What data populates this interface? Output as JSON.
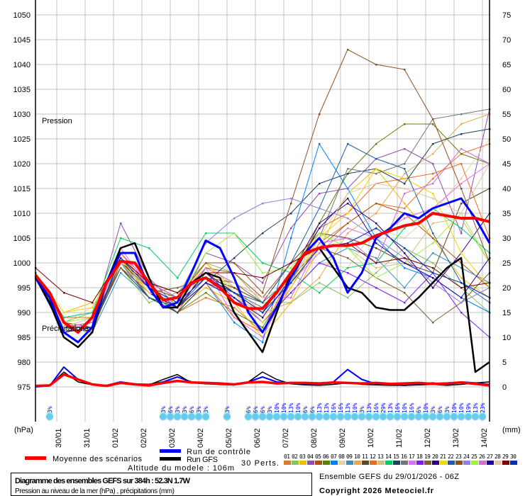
{
  "chart_data": {
    "type": "line",
    "title": "Diagramme des ensembles GEFS sur 384h : 52.3N 1.7W",
    "subtitle": "Pression au niveau de la mer (hPa) , précipitations (mm)",
    "run_info": "Ensemble GEFS du 29/01/2026 - 06Z",
    "copyright": "Copyright 2026 Meteociel.fr",
    "altitude": "Altitude du modele : 106m",
    "ylabel_left": "(hPa)",
    "ylabel_right": "(mm)",
    "label_pression": "Pression",
    "label_precip": "Précipitations",
    "ylim_left": [
      975,
      1050
    ],
    "ylim_right": [
      0,
      75
    ],
    "xlim_hours": [
      0,
      384
    ],
    "grid": true,
    "left_ticks": [
      "1050",
      "1045",
      "1040",
      "1035",
      "1030",
      "1025",
      "1020",
      "1015",
      "1010",
      "1005",
      "1000",
      "995",
      "990",
      "985",
      "980",
      "975"
    ],
    "right_ticks": [
      "75",
      "70",
      "65",
      "60",
      "55",
      "50",
      "45",
      "40",
      "35",
      "30",
      "25",
      "20",
      "15",
      "10",
      "5",
      "0"
    ],
    "date_ticks": [
      "30/01",
      "31/01",
      "01/02",
      "02/02",
      "03/02",
      "04/02",
      "05/02",
      "06/02",
      "07/02",
      "08/02",
      "09/02",
      "10/02",
      "11/02",
      "12/02",
      "13/02",
      "14/02"
    ],
    "legend": {
      "mean": "Moyenne des scénarios",
      "control": "Run de contrôle",
      "gfs": "Run GFS",
      "perts": "30 Perts."
    },
    "colors": {
      "mean": "#ff0000",
      "control": "#0000ff",
      "gfs": "#000000",
      "precip_prob": "#0000ff",
      "bubble": "#66ccee",
      "grid": "#c0c0c0"
    },
    "main_step_hours": 12,
    "mean_pressure": [
      997.5,
      994,
      988,
      986,
      989,
      996,
      1000.3,
      1000,
      996,
      992.5,
      993,
      996,
      997,
      995,
      992,
      990.8,
      990.8,
      994,
      998,
      1002,
      1003,
      1003.5,
      1003.5,
      1004,
      1005.5,
      1006.5,
      1007.5,
      1008,
      1010,
      1009.5,
      1009,
      1009,
      1008.3
    ],
    "control_pressure": [
      997,
      993,
      986,
      984,
      987,
      996,
      1002,
      1002,
      995,
      991,
      992,
      998,
      1004.5,
      1003,
      997,
      990,
      986,
      991,
      997,
      1002,
      1005,
      1001,
      994,
      998,
      1005,
      1007,
      1010,
      1009,
      1011,
      1012,
      1013,
      1009,
      1004
    ],
    "gfs_pressure": [
      997,
      992,
      985,
      983,
      986,
      996,
      1003,
      1004,
      997,
      991,
      991,
      996,
      998,
      997,
      990,
      986,
      982,
      990,
      998,
      1002,
      1003,
      999,
      995,
      994,
      991,
      990.5,
      990.5,
      993,
      996,
      999,
      1001,
      978,
      980
    ],
    "mean_precip": [
      0.2,
      0.3,
      2.5,
      1.5,
      0.5,
      0.2,
      0.8,
      0.5,
      0.3,
      0.8,
      1.2,
      0.9,
      0.8,
      0.7,
      0.5,
      0.9,
      1,
      0.7,
      0.8,
      0.8,
      0.7,
      0.9,
      0.8,
      0.7,
      0.8,
      0.6,
      0.7,
      0.8,
      0.6,
      0.7,
      0.9,
      0.6,
      0.3
    ],
    "control_precip": [
      0,
      0.2,
      4,
      1.5,
      0.5,
      0.3,
      1,
      0.6,
      0.5,
      1,
      2,
      1,
      0.8,
      0.5,
      0.4,
      1,
      2,
      1,
      0.8,
      0.5,
      0.5,
      1,
      3.5,
      1.5,
      0.6,
      0.5,
      0.3,
      0.5,
      0.8,
      0.4,
      1,
      0.8,
      0.5
    ],
    "gfs_precip": [
      0,
      0.3,
      3,
      1,
      0.4,
      0.2,
      0.8,
      0.5,
      0.4,
      1.5,
      2.5,
      0.8,
      0.6,
      0.5,
      0.4,
      1,
      3,
      1.5,
      0.6,
      0.4,
      0.3,
      0.5,
      0.8,
      0.5,
      0.4,
      0.3,
      0.3,
      0.4,
      0.5,
      0.3,
      0.5,
      0.8,
      1
    ],
    "member_step_hours": 24,
    "members": [
      {
        "name": "01",
        "color": "#e07830",
        "values": [
          997,
          987,
          987,
          1000,
          993,
          990,
          993,
          991,
          986,
          995,
          1004,
          1008,
          1012,
          1011,
          1017,
          1022,
          1024
        ]
      },
      {
        "name": "02",
        "color": "#8cc060",
        "values": [
          997,
          988,
          990,
          999,
          992,
          994,
          1000,
          998,
          992,
          992,
          996,
          993,
          998,
          1003,
          1000,
          995,
          990
        ]
      },
      {
        "name": "03",
        "color": "#f0c000",
        "values": [
          998,
          990,
          992,
          1001,
          994,
          991,
          995,
          992,
          985,
          992,
          1003,
          1014,
          1019,
          1012,
          1005,
          997,
          993
        ]
      },
      {
        "name": "04",
        "color": "#9050b0",
        "values": [
          997,
          987,
          988,
          1008,
          997,
          991,
          1002,
          1000,
          996,
          1007,
          1014,
          1015,
          1021,
          1023,
          1020,
          1006,
          1031
        ]
      },
      {
        "name": "05",
        "color": "#b05010",
        "values": [
          998,
          988,
          986,
          1001,
          993,
          990,
          999,
          998,
          993,
          1000,
          1003,
          1008,
          1012,
          1010,
          1005,
          1000,
          995
        ]
      },
      {
        "name": "06",
        "color": "#608000",
        "values": [
          997,
          986,
          987,
          1000,
          994,
          990,
          994,
          990,
          987,
          996,
          1008,
          1018,
          1024,
          1028,
          1028,
          1022,
          1020
        ]
      },
      {
        "name": "07",
        "color": "#0080ff",
        "values": [
          997,
          987,
          988,
          1001,
          994,
          990,
          996,
          988,
          984,
          1005,
          1024,
          1015,
          1005,
          999,
          997,
          993,
          990
        ]
      },
      {
        "name": "08",
        "color": "#e8d0a8",
        "values": [
          997,
          988,
          991,
          1000,
          996,
          994,
          998,
          995,
          989,
          994,
          1000,
          999,
          1007,
          1005,
          1010,
          1017,
          1025
        ]
      },
      {
        "name": "09",
        "color": "#3890c0",
        "values": [
          997,
          987,
          986,
          998,
          993,
          991,
          998,
          994,
          988,
          994,
          1000,
          1003,
          1001,
          995,
          1002,
          999,
          996
        ]
      },
      {
        "name": "10",
        "color": "#e8a850",
        "values": [
          997,
          987,
          989,
          999,
          995,
          993,
          1000,
          995,
          990,
          992,
          997,
          1006,
          1010,
          1018,
          1022,
          1028,
          1030
        ]
      },
      {
        "name": "11",
        "color": "#604818",
        "values": [
          997,
          986,
          987,
          1000,
          996,
          994,
          997,
          995,
          992,
          1000,
          1006,
          1005,
          1003,
          1000,
          998,
          1012,
          1015
        ]
      },
      {
        "name": "12",
        "color": "#f06820",
        "values": [
          998,
          989,
          989,
          1002,
          995,
          990,
          996,
          989,
          986,
          998,
          1007,
          1010,
          1016,
          1017,
          1018,
          1020,
          1005
        ]
      },
      {
        "name": "13",
        "color": "#d0c078",
        "values": [
          997,
          987,
          988,
          999,
          993,
          991,
          996,
          993,
          990,
          996,
          1006,
          1003,
          999,
          1000,
          1008,
          1009,
          1000
        ]
      },
      {
        "name": "14",
        "color": "#00d060",
        "values": [
          998,
          989,
          990,
          1005,
          1003,
          997,
          1006,
          1006,
          1000,
          998,
          994,
          999,
          1000,
          1007,
          1011,
          1007,
          1002
        ]
      },
      {
        "name": "15",
        "color": "#204060",
        "values": [
          997,
          986,
          987,
          999,
          993,
          990,
          996,
          1001,
          1006,
          1010,
          1016,
          1018,
          1019,
          1016,
          1024,
          1026,
          1027
        ]
      },
      {
        "name": "16",
        "color": "#707880",
        "values": [
          997,
          987,
          988,
          1000,
          994,
          991,
          996,
          994,
          991,
          998,
          1005,
          1019,
          1018,
          1020,
          1029,
          1030,
          1031
        ]
      },
      {
        "name": "17",
        "color": "#e070f0",
        "values": [
          997,
          986,
          988,
          1003,
          995,
          992,
          999,
          989,
          985,
          996,
          1002,
          1007,
          1005,
          1009,
          1011,
          1016,
          1020
        ]
      },
      {
        "name": "18",
        "color": "#8020f0",
        "values": [
          997,
          986,
          987,
          1001,
          996,
          993,
          998,
          993,
          988,
          994,
          1000,
          998,
          995,
          992,
          998,
          990,
          985
        ]
      },
      {
        "name": "19",
        "color": "#806030",
        "values": [
          997,
          987,
          988,
          999,
          994,
          995,
          997,
          996,
          992,
          997,
          1003,
          1001,
          997,
          994,
          988,
          992,
          998
        ]
      },
      {
        "name": "20",
        "color": "#300078",
        "values": [
          997,
          986,
          987,
          1000,
          994,
          991,
          998,
          994,
          990,
          998,
          1008,
          1012,
          1008,
          1002,
          995,
          1002,
          1010
        ]
      },
      {
        "name": "21",
        "color": "#f0d800",
        "values": [
          998,
          990,
          991,
          1001,
          994,
          992,
          1000,
          994,
          988,
          995,
          1005,
          1010,
          1019,
          1017,
          1014,
          1002,
          995
        ]
      },
      {
        "name": "22",
        "color": "#2060a0",
        "values": [
          997,
          987,
          987,
          1000,
          993,
          991,
          997,
          994,
          992,
          1000,
          1011,
          1024,
          1021,
          1019,
          1006,
          996,
          992
        ]
      },
      {
        "name": "23",
        "color": "#905020",
        "values": [
          998,
          988,
          987,
          1000,
          995,
          993,
          1000,
          1000,
          994,
          1012,
          1030,
          1043,
          1040,
          1039,
          1029,
          1015,
          1000
        ]
      },
      {
        "name": "24",
        "color": "#9080e0",
        "values": [
          997,
          987,
          988,
          1002,
          996,
          993,
          1004,
          1009,
          1012,
          1013,
          1011,
          1009,
          1005,
          1001,
          996,
          992,
          995
        ]
      },
      {
        "name": "25",
        "color": "#a0f040",
        "values": [
          997,
          988,
          989,
          1000,
          994,
          992,
          1002,
          1006,
          998,
          999,
          1006,
          1003,
          997,
          1000,
          1004,
          1010,
          1000
        ]
      },
      {
        "name": "26",
        "color": "#d070d0",
        "values": [
          997,
          987,
          988,
          1002,
          996,
          993,
          999,
          996,
          993,
          993,
          1004,
          1005,
          1000,
          1014,
          1016,
          1023,
          1020
        ]
      },
      {
        "name": "27",
        "color": "#2000a0",
        "values": [
          997,
          986,
          987,
          1001,
          995,
          991,
          996,
          993,
          989,
          997,
          1007,
          1013,
          1004,
          1000,
          997,
          993,
          1001
        ]
      },
      {
        "name": "28",
        "color": "#e0c8a8",
        "values": [
          997,
          987,
          989,
          1000,
          994,
          992,
          998,
          996,
          993,
          996,
          1005,
          1014,
          1016,
          1015,
          1013,
          1010,
          1020
        ]
      },
      {
        "name": "29",
        "color": "#800000",
        "values": [
          999,
          994,
          992,
          1001,
          996,
          994,
          998,
          998,
          997,
          1000,
          1003,
          1004,
          1000,
          1001,
          999,
          995,
          996
        ]
      },
      {
        "name": "30",
        "color": "#0030c0",
        "values": [
          997,
          986,
          987,
          1001,
          995,
          992,
          997,
          994,
          990,
          996,
          1003,
          1004,
          1007,
          1003,
          998,
          996,
          993
        ]
      }
    ],
    "precip_probability": [
      {
        "hour": 12,
        "label": "3%"
      },
      {
        "hour": 108,
        "label": "3%"
      },
      {
        "hour": 114,
        "label": "6%"
      },
      {
        "hour": 120,
        "label": "3%"
      },
      {
        "hour": 126,
        "label": "3%"
      },
      {
        "hour": 132,
        "label": "6%"
      },
      {
        "hour": 138,
        "label": "3%"
      },
      {
        "hour": 144,
        "label": "3%"
      },
      {
        "hour": 162,
        "label": "3%"
      },
      {
        "hour": 180,
        "label": "6%"
      },
      {
        "hour": 186,
        "label": "6%"
      },
      {
        "hour": 192,
        "label": "6%"
      },
      {
        "hour": 198,
        "label": "3%"
      },
      {
        "hour": 204,
        "label": "10%"
      },
      {
        "hour": 210,
        "label": "10%"
      },
      {
        "hour": 216,
        "label": "13%"
      },
      {
        "hour": 222,
        "label": "10%"
      },
      {
        "hour": 228,
        "label": "6%"
      },
      {
        "hour": 234,
        "label": "6%"
      },
      {
        "hour": 240,
        "label": "13%"
      },
      {
        "hour": 246,
        "label": "13%"
      },
      {
        "hour": 252,
        "label": "16%"
      },
      {
        "hour": 258,
        "label": "16%"
      },
      {
        "hour": 264,
        "label": "13%"
      },
      {
        "hour": 270,
        "label": "10%"
      },
      {
        "hour": 276,
        "label": "3%"
      },
      {
        "hour": 282,
        "label": "13%"
      },
      {
        "hour": 288,
        "label": "16%"
      },
      {
        "hour": 294,
        "label": "29%"
      },
      {
        "hour": 300,
        "label": "13%"
      },
      {
        "hour": 306,
        "label": "16%"
      },
      {
        "hour": 312,
        "label": "10%"
      },
      {
        "hour": 318,
        "label": "16%"
      },
      {
        "hour": 324,
        "label": "6%"
      },
      {
        "hour": 330,
        "label": "10%"
      },
      {
        "hour": 336,
        "label": "3%"
      },
      {
        "hour": 342,
        "label": "6%"
      },
      {
        "hour": 348,
        "label": "3%"
      },
      {
        "hour": 354,
        "label": "10%"
      },
      {
        "hour": 360,
        "label": "10%"
      },
      {
        "hour": 366,
        "label": "19%"
      },
      {
        "hour": 372,
        "label": "13%"
      },
      {
        "hour": 378,
        "label": "23%"
      }
    ]
  }
}
